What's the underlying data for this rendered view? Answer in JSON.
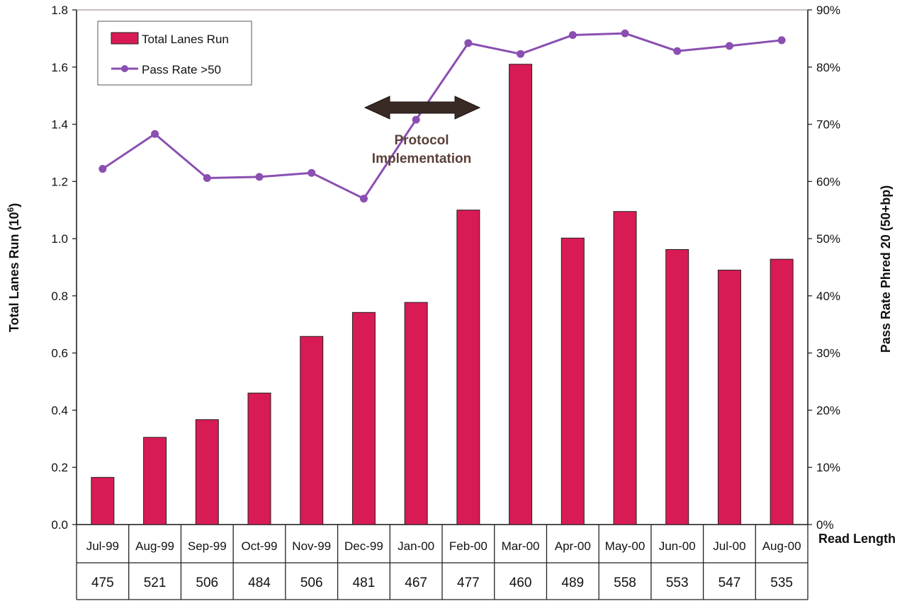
{
  "chart_data": {
    "type": "bar",
    "categories": [
      "Jul-99",
      "Aug-99",
      "Sep-99",
      "Oct-99",
      "Nov-99",
      "Dec-99",
      "Jan-00",
      "Feb-00",
      "Mar-00",
      "Apr-00",
      "May-00",
      "Jun-00",
      "Jul-00",
      "Aug-00"
    ],
    "series": [
      {
        "name": "Total Lanes Run",
        "type": "bar",
        "axis": "left",
        "color": "#d81b55",
        "values": [
          0.165,
          0.305,
          0.367,
          0.46,
          0.658,
          0.742,
          0.777,
          1.1,
          1.61,
          1.002,
          1.095,
          0.962,
          0.89,
          0.928
        ]
      },
      {
        "name": "Pass Rate >50",
        "type": "line",
        "axis": "right",
        "color": "#8a4fb0",
        "values": [
          62.2,
          68.3,
          60.6,
          60.8,
          61.5,
          57.0,
          70.8,
          84.2,
          82.3,
          85.6,
          85.9,
          82.8,
          83.7,
          84.7
        ]
      }
    ],
    "read_length": {
      "label": "Read Length",
      "values": [
        "475",
        "521",
        "506",
        "484",
        "506",
        "481",
        "467",
        "477",
        "460",
        "489",
        "558",
        "553",
        "547",
        "535"
      ]
    },
    "ylabel": "Total Lanes Run (10",
    "ylabel_sup": "6",
    "ylabel_end": ")",
    "y2label": "Pass Rate Phred 20 (50+bp)",
    "ylim": [
      0,
      1.8
    ],
    "y_ticks": [
      "0.0",
      "0.2",
      "0.4",
      "0.6",
      "0.8",
      "1.0",
      "1.2",
      "1.4",
      "1.6",
      "1.8"
    ],
    "y2lim": [
      0,
      90
    ],
    "y2_ticks": [
      "0%",
      "10%",
      "20%",
      "30%",
      "40%",
      "50%",
      "60%",
      "70%",
      "80%",
      "90%"
    ],
    "annotation": {
      "line1": "Protocol",
      "line2": "Implementation",
      "from": "Dec-99",
      "to": "Feb-00"
    },
    "legend_position": "top-left",
    "grid": false
  }
}
